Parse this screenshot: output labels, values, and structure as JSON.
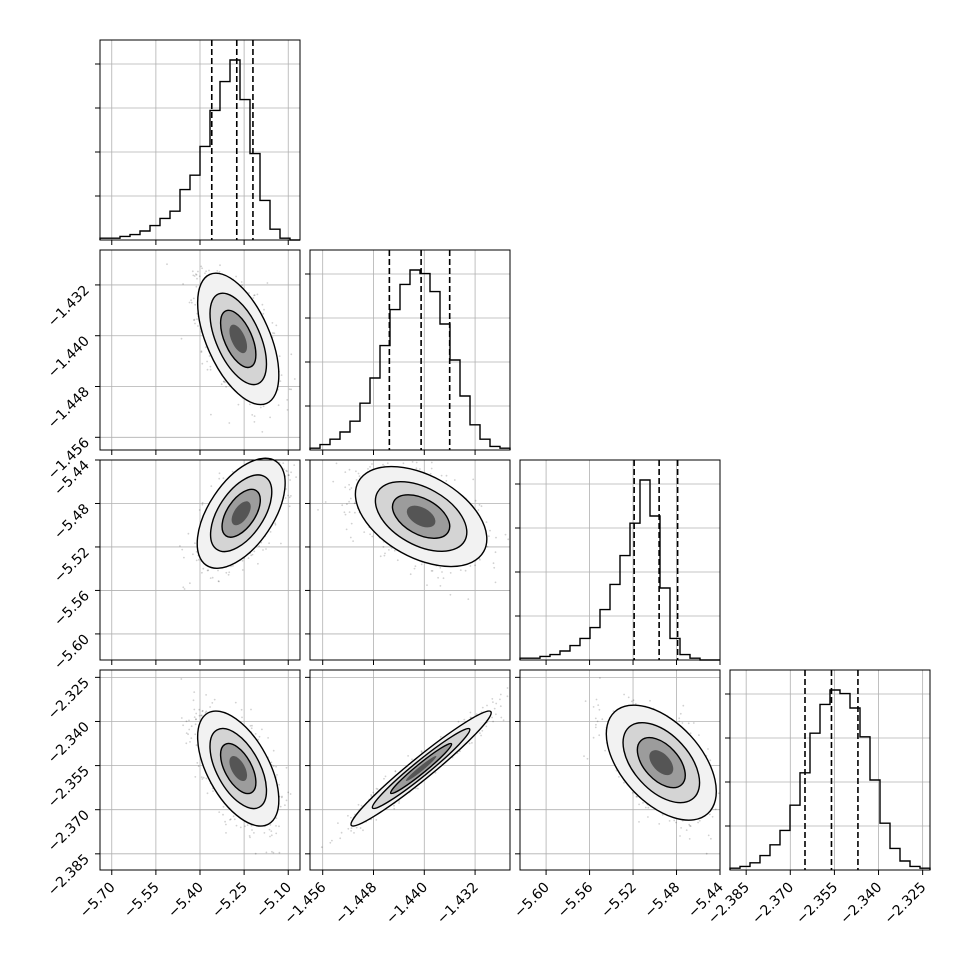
{
  "chart_data": {
    "type": "corner",
    "params": [
      {
        "range": [
          -5.74,
          -5.06
        ],
        "ticks": [
          -5.7,
          -5.55,
          -5.4,
          -5.25,
          -5.1
        ],
        "tick_labels": [
          "−5.70",
          "−5.55",
          "−5.40",
          "−5.25",
          "−5.10"
        ],
        "q16": -5.36,
        "q50": -5.275,
        "q84": -5.22
      },
      {
        "range": [
          -1.458,
          -1.4265
        ],
        "ticks": [
          -1.456,
          -1.448,
          -1.44,
          -1.432
        ],
        "tick_labels": [
          "−1.456",
          "−1.448",
          "−1.440",
          "−1.432"
        ],
        "q16": -1.4455,
        "q50": -1.4405,
        "q84": -1.436
      },
      {
        "range": [
          -5.624,
          -5.44
        ],
        "ticks": [
          -5.6,
          -5.56,
          -5.52,
          -5.48,
          -5.44
        ],
        "tick_labels": [
          "−5.60",
          "−5.56",
          "−5.52",
          "−5.48",
          "−5.44"
        ],
        "q16": -5.519,
        "q50": -5.496,
        "q84": -5.479
      },
      {
        "range": [
          -2.3905,
          -2.3225
        ],
        "ticks": [
          -2.385,
          -2.37,
          -2.355,
          -2.34,
          -2.325
        ],
        "tick_labels": [
          "−2.385",
          "−2.370",
          "−2.355",
          "−2.340",
          "−2.325"
        ],
        "q16": -2.365,
        "q50": -2.356,
        "q84": -2.347
      }
    ],
    "histograms": [
      [
        1,
        1,
        2,
        3,
        5,
        8,
        12,
        16,
        28,
        36,
        52,
        72,
        88,
        100,
        78,
        48,
        22,
        6,
        1,
        0
      ],
      [
        1,
        3,
        6,
        10,
        16,
        26,
        40,
        58,
        78,
        92,
        100,
        98,
        88,
        70,
        50,
        30,
        14,
        6,
        2,
        1
      ],
      [
        1,
        1,
        2,
        3,
        5,
        8,
        12,
        18,
        28,
        42,
        58,
        76,
        100,
        80,
        40,
        12,
        3,
        1,
        0,
        0
      ],
      [
        1,
        2,
        4,
        8,
        14,
        22,
        36,
        54,
        76,
        92,
        100,
        98,
        90,
        74,
        50,
        26,
        12,
        5,
        2,
        1
      ]
    ],
    "densities": {
      "1-0": {
        "cx": -5.27,
        "cy": -1.4405,
        "sx": 0.06,
        "sy": 0.0045,
        "rho": -0.55
      },
      "2-0": {
        "cx": -5.26,
        "cy": -5.489,
        "sx": 0.065,
        "sy": 0.022,
        "rho": 0.55
      },
      "2-1": {
        "cx": -1.4405,
        "cy": -5.492,
        "sx": 0.0045,
        "sy": 0.02,
        "rho": -0.45
      },
      "3-0": {
        "cx": -5.27,
        "cy": -2.356,
        "sx": 0.06,
        "sy": 0.0085,
        "rho": -0.55
      },
      "3-1": {
        "cx": -1.4405,
        "cy": -2.356,
        "sx": 0.0048,
        "sy": 0.0085,
        "rho": 0.97
      },
      "3-2": {
        "cx": -5.494,
        "cy": -2.354,
        "sx": 0.022,
        "sy": 0.0085,
        "rho": -0.5
      }
    }
  }
}
